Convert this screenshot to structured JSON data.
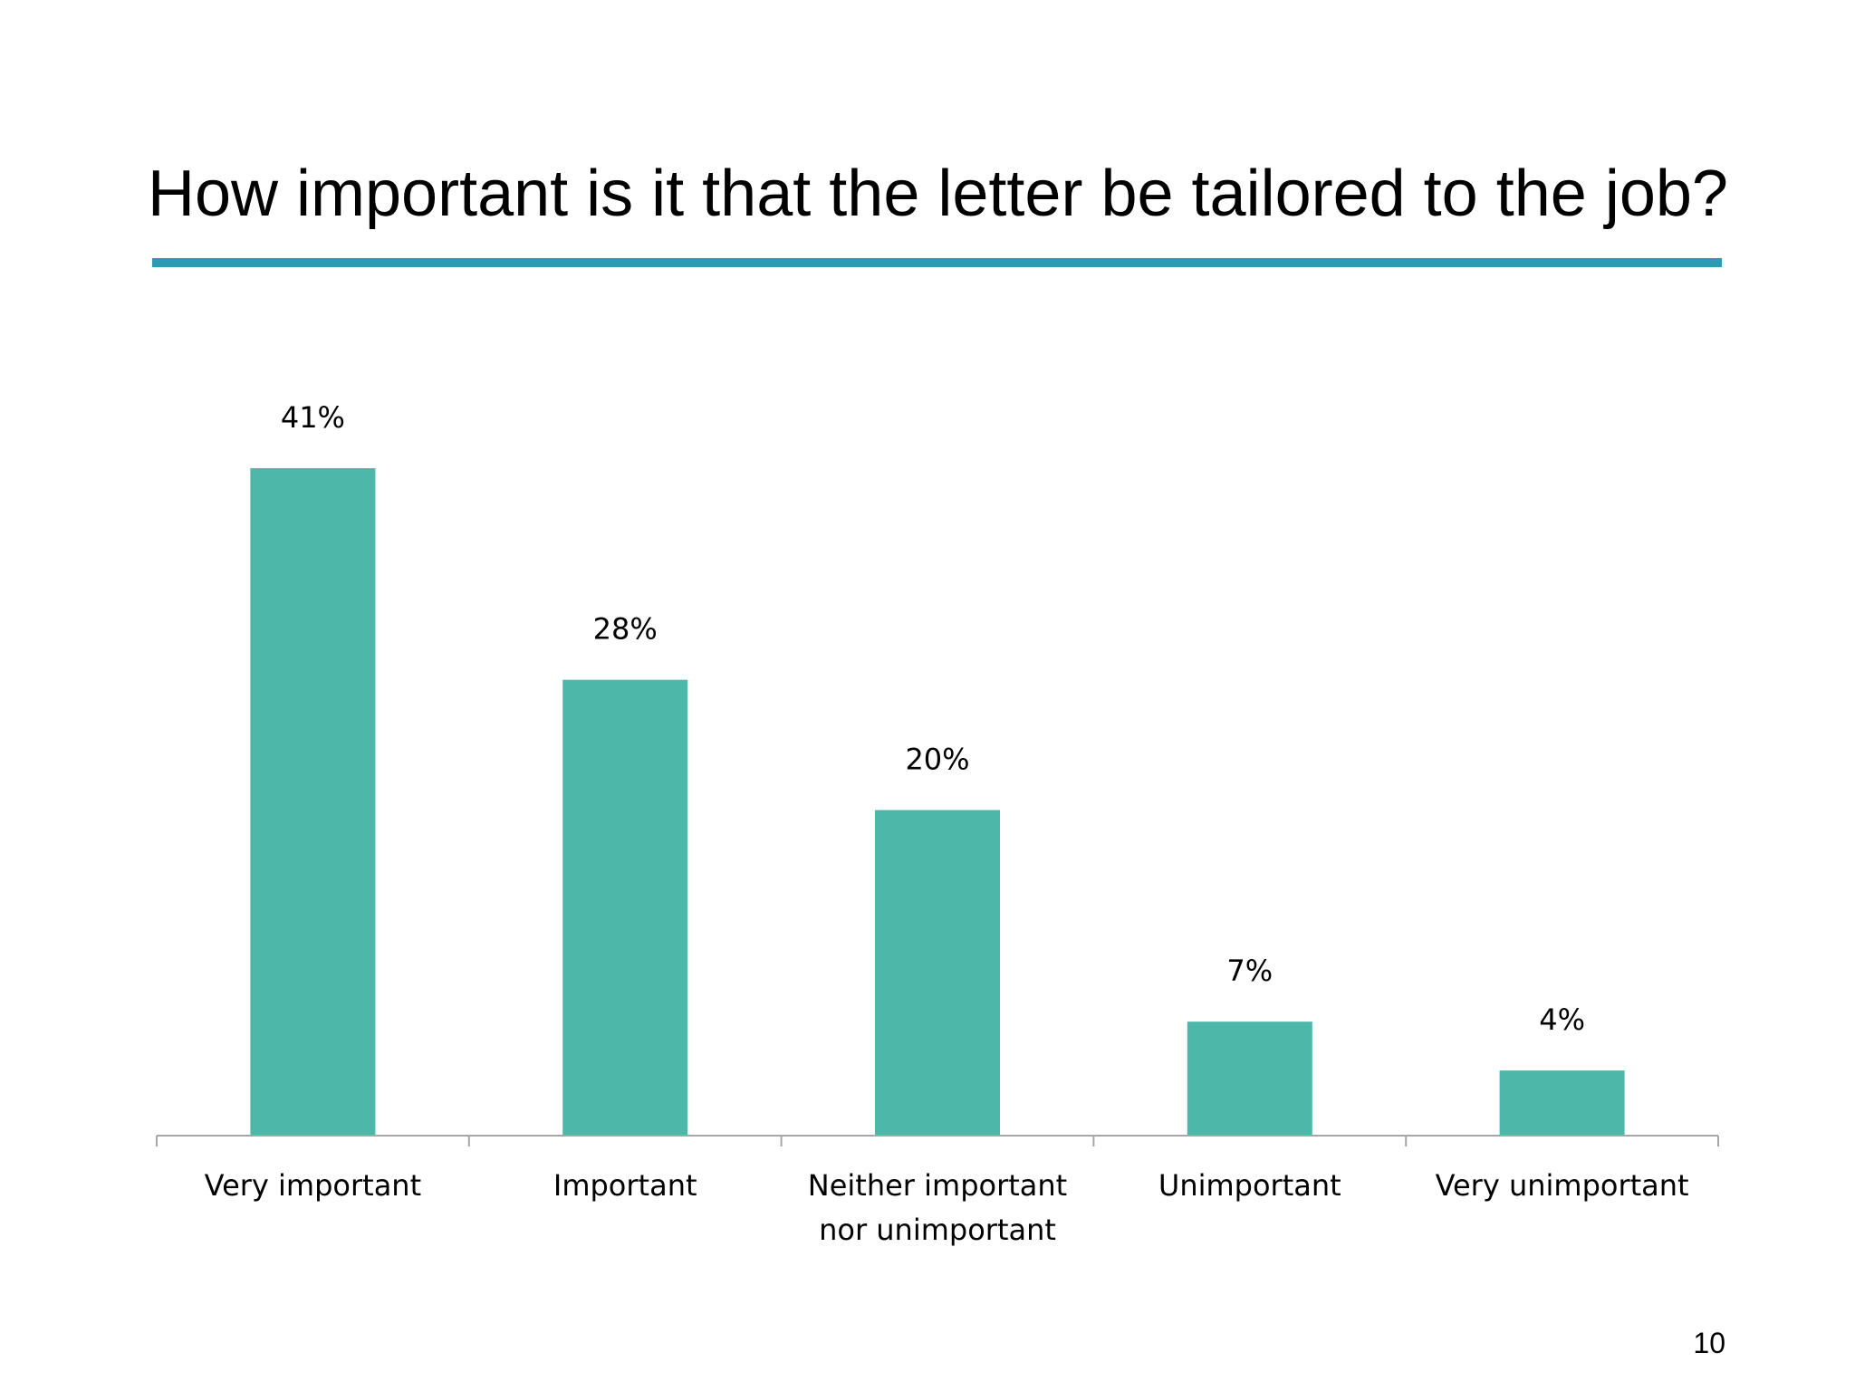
{
  "slide": {
    "title": "How important is it that the letter be tailored to the job?",
    "page_number": "10"
  },
  "colors": {
    "accent_rule": "#2a9db5",
    "bar": "#4db8aa",
    "axis": "#a6a6a6",
    "text": "#000000"
  },
  "chart_data": {
    "type": "bar",
    "categories": [
      [
        "Very important"
      ],
      [
        "Important"
      ],
      [
        "Neither important",
        "nor unimportant"
      ],
      [
        "Unimportant"
      ],
      [
        "Very unimportant"
      ]
    ],
    "values": [
      41,
      28,
      20,
      7,
      4
    ],
    "data_labels": [
      "41%",
      "28%",
      "20%",
      "7%",
      "4%"
    ],
    "ylim": [
      0,
      41
    ],
    "grid": false,
    "legend": "none"
  }
}
